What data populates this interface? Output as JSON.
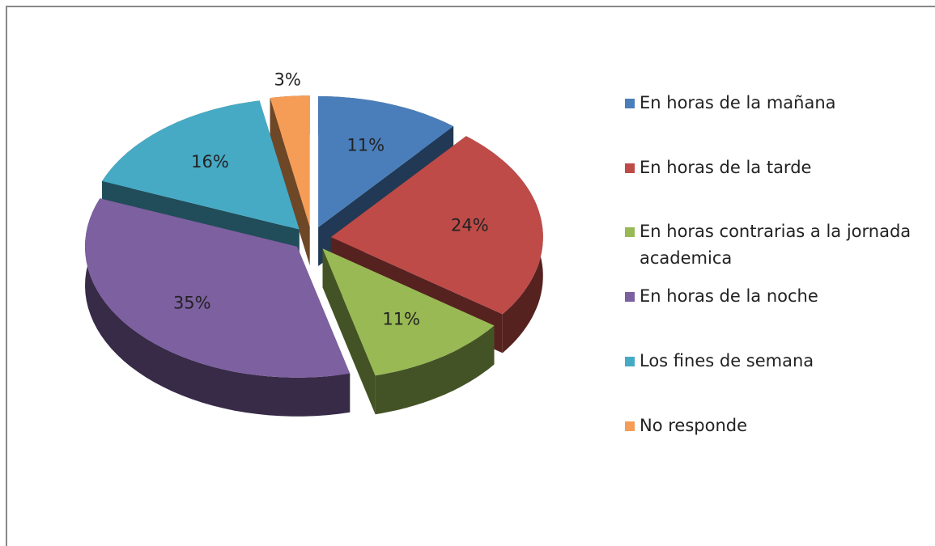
{
  "chart_data": {
    "type": "pie",
    "categories": [
      "En horas de la mañana",
      "En horas de la tarde",
      "En horas contrarias a la jornada academica",
      "En horas de la noche",
      "Los fines de semana",
      "No responde"
    ],
    "values": [
      11,
      24,
      11,
      35,
      16,
      3
    ],
    "value_labels": [
      "11%",
      "24%",
      "11%",
      "35%",
      "16%",
      "3%"
    ],
    "colors": [
      "#4a7ebb",
      "#be4b48",
      "#98b954",
      "#7d60a0",
      "#46aac5",
      "#f59d56"
    ],
    "legend": "right"
  }
}
